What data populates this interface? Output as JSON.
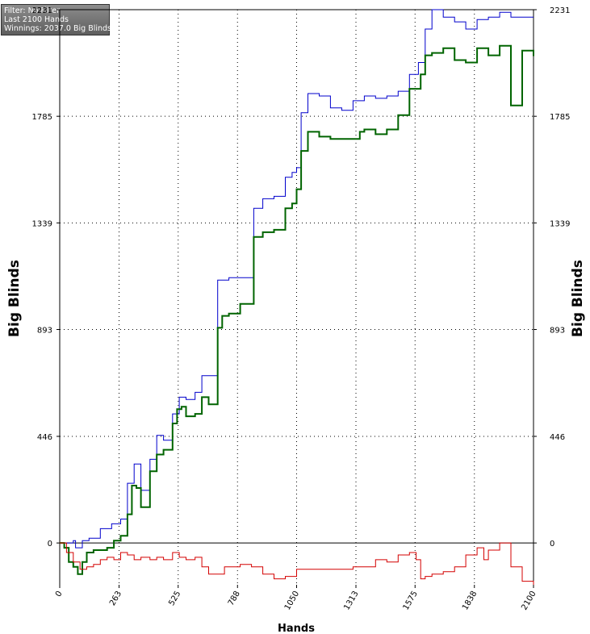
{
  "info": {
    "filter": "Filter: No Filter",
    "hands": "Last  2100 Hands",
    "winnings": "Winnings: 2037.0 Big Blinds"
  },
  "chart_data": {
    "type": "line",
    "title": "",
    "xlabel": "Hands",
    "ylabel": "Big Blinds",
    "xlim": [
      0,
      2100
    ],
    "ylim": [
      -175,
      2231
    ],
    "grid": true,
    "x_ticks": [
      "0",
      "263",
      "525",
      "788",
      "1050",
      "1313",
      "1575",
      "1838",
      "2100"
    ],
    "x_tick_values": [
      0,
      263,
      525,
      788,
      1050,
      1313,
      1575,
      1838,
      2100
    ],
    "y_ticks": [
      "0",
      "446",
      "893",
      "1339",
      "1785",
      "2231"
    ],
    "y_tick_values": [
      0,
      446,
      893,
      1339,
      1785,
      2231
    ],
    "colors": {
      "blue": "#0000cc",
      "green": "#006400",
      "red": "#d40000"
    },
    "series": [
      {
        "color": "#0000cc",
        "x": [
          0,
          40,
          60,
          70,
          100,
          130,
          180,
          230,
          270,
          300,
          330,
          360,
          400,
          430,
          460,
          500,
          530,
          560,
          600,
          630,
          660,
          700,
          750,
          800,
          860,
          900,
          950,
          1000,
          1030,
          1050,
          1070,
          1100,
          1150,
          1200,
          1250,
          1300,
          1350,
          1400,
          1450,
          1500,
          1550,
          1590,
          1620,
          1650,
          1700,
          1750,
          1800,
          1850,
          1900,
          1950,
          2000,
          2100
        ],
        "y": [
          0,
          0,
          10,
          -20,
          10,
          20,
          60,
          80,
          100,
          250,
          330,
          220,
          350,
          450,
          430,
          540,
          610,
          600,
          630,
          700,
          700,
          1100,
          1110,
          1110,
          1400,
          1440,
          1450,
          1530,
          1550,
          1570,
          1800,
          1880,
          1870,
          1820,
          1810,
          1850,
          1870,
          1860,
          1870,
          1890,
          1960,
          2010,
          2150,
          2231,
          2200,
          2180,
          2150,
          2190,
          2200,
          2220,
          2200,
          2200
        ]
      },
      {
        "color": "#006400",
        "x": [
          0,
          20,
          40,
          60,
          80,
          100,
          120,
          150,
          180,
          210,
          240,
          270,
          300,
          320,
          340,
          360,
          400,
          430,
          460,
          500,
          520,
          540,
          560,
          600,
          630,
          660,
          700,
          720,
          750,
          800,
          860,
          900,
          950,
          1000,
          1030,
          1050,
          1070,
          1100,
          1150,
          1200,
          1250,
          1300,
          1330,
          1350,
          1400,
          1450,
          1500,
          1550,
          1600,
          1620,
          1650,
          1700,
          1750,
          1800,
          1850,
          1900,
          1950,
          2000,
          2050,
          2100
        ],
        "y": [
          0,
          -20,
          -80,
          -100,
          -130,
          -80,
          -40,
          -30,
          -30,
          -20,
          10,
          30,
          120,
          240,
          230,
          150,
          300,
          370,
          390,
          500,
          560,
          570,
          530,
          540,
          610,
          580,
          900,
          950,
          960,
          1000,
          1280,
          1300,
          1310,
          1400,
          1420,
          1480,
          1640,
          1720,
          1700,
          1690,
          1690,
          1690,
          1720,
          1730,
          1710,
          1730,
          1790,
          1900,
          1960,
          2040,
          2050,
          2070,
          2020,
          2010,
          2070,
          2040,
          2080,
          1830,
          2060,
          2037
        ]
      },
      {
        "color": "#d40000",
        "x": [
          0,
          30,
          60,
          90,
          120,
          150,
          180,
          210,
          240,
          270,
          300,
          330,
          360,
          400,
          430,
          460,
          500,
          530,
          560,
          600,
          630,
          660,
          700,
          730,
          760,
          800,
          850,
          900,
          950,
          1000,
          1050,
          1100,
          1150,
          1200,
          1250,
          1300,
          1350,
          1400,
          1450,
          1500,
          1550,
          1580,
          1600,
          1620,
          1650,
          1700,
          1750,
          1800,
          1850,
          1880,
          1900,
          1950,
          2000,
          2050,
          2100
        ],
        "y": [
          0,
          -40,
          -80,
          -110,
          -100,
          -90,
          -70,
          -60,
          -70,
          -40,
          -50,
          -70,
          -60,
          -70,
          -60,
          -70,
          -40,
          -60,
          -70,
          -60,
          -100,
          -130,
          -130,
          -100,
          -100,
          -90,
          -100,
          -130,
          -150,
          -140,
          -110,
          -110,
          -110,
          -110,
          -110,
          -100,
          -100,
          -70,
          -80,
          -50,
          -40,
          -70,
          -150,
          -140,
          -130,
          -120,
          -100,
          -50,
          -20,
          -70,
          -30,
          0,
          -100,
          -160,
          -175
        ]
      }
    ]
  }
}
